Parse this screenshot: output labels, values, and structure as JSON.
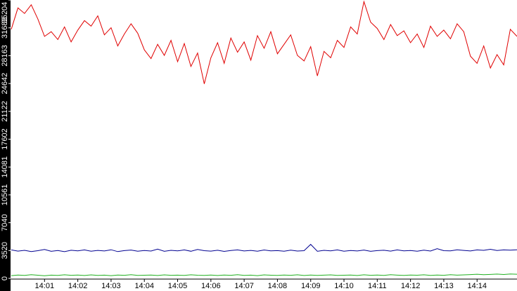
{
  "chart_data": {
    "type": "line",
    "x": [
      0,
      0.2,
      0.4,
      0.6,
      0.8,
      1,
      1.2,
      1.4,
      1.6,
      1.8,
      2,
      2.2,
      2.4,
      2.6,
      2.8,
      3,
      3.2,
      3.4,
      3.6,
      3.8,
      4,
      4.2,
      4.4,
      4.6,
      4.8,
      5,
      5.2,
      5.4,
      5.6,
      5.8,
      6,
      6.2,
      6.4,
      6.6,
      6.8,
      7,
      7.2,
      7.4,
      7.6,
      7.8,
      8,
      8.2,
      8.4,
      8.6,
      8.8,
      9,
      9.2,
      9.4,
      9.6,
      9.8,
      10,
      10.2,
      10.4,
      10.6,
      10.8,
      11,
      11.2,
      11.4,
      11.6,
      11.8,
      12,
      12.2,
      12.4,
      12.6,
      12.8,
      13,
      13.2,
      13.4,
      13.6,
      13.8,
      14,
      14.2,
      14.4,
      14.6,
      14.8,
      15,
      15.2
    ],
    "series": [
      {
        "color": "#e00000",
        "values": [
          31500,
          34200,
          33500,
          34600,
          32800,
          30600,
          31200,
          30200,
          31800,
          29900,
          31400,
          32600,
          31900,
          33200,
          30800,
          31700,
          29400,
          30900,
          32200,
          31000,
          28900,
          27800,
          29600,
          28200,
          30100,
          27400,
          29700,
          26800,
          28500,
          24600,
          27900,
          29800,
          27200,
          30400,
          28600,
          29900,
          27600,
          30700,
          29100,
          31200,
          28400,
          29600,
          30800,
          28200,
          27500,
          29300,
          25600,
          28700,
          27900,
          30100,
          29200,
          31800,
          30900,
          35000,
          32400,
          31600,
          30200,
          32100,
          30700,
          31300,
          29800,
          30900,
          29200,
          31900,
          30600,
          31400,
          30300,
          32200,
          31200,
          28100,
          27200,
          29400,
          26600,
          28300,
          27000,
          31500,
          30600
        ]
      },
      {
        "color": "#000090",
        "values": [
          3600,
          3450,
          3550,
          3400,
          3500,
          3650,
          3420,
          3520,
          3380,
          3560,
          3480,
          3600,
          3430,
          3540,
          3470,
          3620,
          3390,
          3510,
          3580,
          3440,
          3530,
          3460,
          3700,
          3420,
          3550,
          3480,
          3600,
          3430,
          3650,
          3500,
          3450,
          3560,
          3410,
          3520,
          3600,
          3470,
          3540,
          3430,
          3590,
          3480,
          3510,
          3440,
          3570,
          3460,
          3500,
          4300,
          3420,
          3550,
          3480,
          3600,
          3440,
          3530,
          3470,
          3580,
          3420,
          3510,
          3560,
          3450,
          3600,
          3480,
          3530,
          3440,
          3570,
          3460,
          3750,
          3500,
          3480,
          3620,
          3540,
          3470,
          3600,
          3550,
          3680,
          3520,
          3600,
          3570,
          3620
        ]
      },
      {
        "color": "#20b020",
        "values": [
          350,
          420,
          380,
          460,
          400,
          330,
          410,
          370,
          450,
          390,
          420,
          360,
          440,
          380,
          410,
          350,
          430,
          390,
          460,
          370,
          400,
          420,
          360,
          440,
          390,
          410,
          370,
          450,
          400,
          380,
          430,
          360,
          420,
          390,
          460,
          380,
          410,
          350,
          440,
          400,
          370,
          430,
          390,
          450,
          360,
          420,
          380,
          410,
          440,
          370,
          400,
          430,
          360,
          450,
          390,
          420,
          380,
          460,
          410,
          370,
          430,
          400,
          450,
          380,
          420,
          390,
          460,
          410,
          440,
          480,
          520,
          470,
          500,
          540,
          490,
          560,
          520
        ]
      }
    ],
    "xlim": [
      0,
      15.2
    ],
    "xticks": [
      {
        "value": 1,
        "label": "14:01"
      },
      {
        "value": 2,
        "label": "14:02"
      },
      {
        "value": 3,
        "label": "14:03"
      },
      {
        "value": 4,
        "label": "14:04"
      },
      {
        "value": 5,
        "label": "14:05"
      },
      {
        "value": 6,
        "label": "14:06"
      },
      {
        "value": 7,
        "label": "14:07"
      },
      {
        "value": 8,
        "label": "14:08"
      },
      {
        "value": 9,
        "label": "14:09"
      },
      {
        "value": 10,
        "label": "14:10"
      },
      {
        "value": 11,
        "label": "14:11"
      },
      {
        "value": 12,
        "label": "14:12"
      },
      {
        "value": 13,
        "label": "14:13"
      },
      {
        "value": 14,
        "label": "14:14"
      }
    ],
    "ylim": [
      0,
      35204
    ],
    "yticks": [
      0,
      3520,
      7040,
      10561,
      14081,
      17602,
      21122,
      24642,
      28163,
      31683,
      35204
    ]
  }
}
